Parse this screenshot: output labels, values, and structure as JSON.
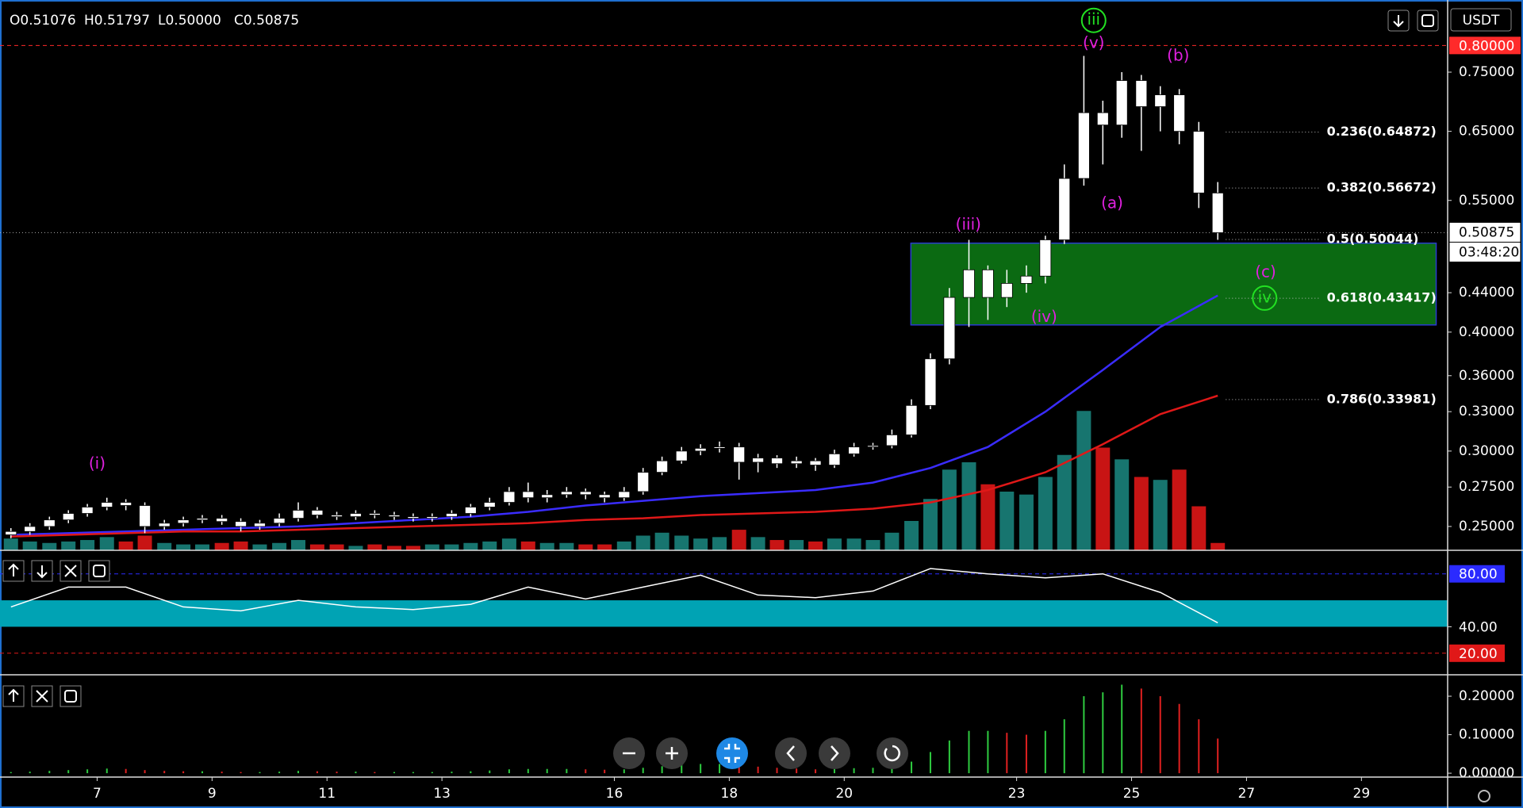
{
  "header": {
    "ohlc": [
      "O0.51076",
      "H0.51797",
      "L0.50000",
      "C0.50875"
    ],
    "quote": "USDT"
  },
  "chart_data": [
    {
      "type": "candlestick",
      "x": [
        5.5,
        5.83,
        6.17,
        6.5,
        6.83,
        7.17,
        7.5,
        7.83,
        8.17,
        8.5,
        8.83,
        9.17,
        9.5,
        9.83,
        10.17,
        10.5,
        10.83,
        11.17,
        11.5,
        11.83,
        12.17,
        12.5,
        12.83,
        13.17,
        13.5,
        13.83,
        14.17,
        14.5,
        14.83,
        15.17,
        15.5,
        15.83,
        16.17,
        16.5,
        16.83,
        17.17,
        17.5,
        17.83,
        18.17,
        18.5,
        18.83,
        19.17,
        19.5,
        19.83,
        20.17,
        20.5,
        20.83,
        21.17,
        21.5,
        21.83,
        22.17,
        22.5,
        22.83,
        23.17,
        23.5,
        23.83,
        24.17,
        24.5,
        24.83,
        25.17,
        25.5,
        25.83,
        26.17,
        26.5
      ],
      "open": [
        0.245,
        0.247,
        0.25,
        0.254,
        0.258,
        0.262,
        0.265,
        0.263,
        0.25,
        0.252,
        0.254,
        0.255,
        0.253,
        0.25,
        0.252,
        0.255,
        0.26,
        0.257,
        0.256,
        0.258,
        0.257,
        0.256,
        0.255,
        0.256,
        0.258,
        0.262,
        0.265,
        0.272,
        0.268,
        0.27,
        0.272,
        0.27,
        0.268,
        0.272,
        0.285,
        0.293,
        0.3,
        0.302,
        0.303,
        0.292,
        0.295,
        0.291,
        0.293,
        0.29,
        0.298,
        0.303,
        0.304,
        0.312,
        0.335,
        0.375,
        0.435,
        0.465,
        0.435,
        0.45,
        0.458,
        0.5,
        0.58,
        0.68,
        0.66,
        0.735,
        0.69,
        0.71,
        0.65,
        0.56
      ],
      "high": [
        0.249,
        0.252,
        0.256,
        0.26,
        0.264,
        0.268,
        0.267,
        0.265,
        0.254,
        0.256,
        0.257,
        0.257,
        0.255,
        0.254,
        0.258,
        0.265,
        0.262,
        0.259,
        0.26,
        0.26,
        0.259,
        0.258,
        0.258,
        0.26,
        0.264,
        0.268,
        0.275,
        0.278,
        0.273,
        0.275,
        0.274,
        0.272,
        0.275,
        0.288,
        0.296,
        0.303,
        0.305,
        0.307,
        0.306,
        0.298,
        0.297,
        0.296,
        0.295,
        0.301,
        0.306,
        0.306,
        0.316,
        0.34,
        0.38,
        0.445,
        0.5,
        0.47,
        0.465,
        0.47,
        0.505,
        0.6,
        0.78,
        0.7,
        0.75,
        0.745,
        0.725,
        0.72,
        0.665,
        0.575
      ],
      "low": [
        0.243,
        0.245,
        0.248,
        0.252,
        0.256,
        0.26,
        0.26,
        0.246,
        0.248,
        0.25,
        0.252,
        0.251,
        0.247,
        0.248,
        0.25,
        0.253,
        0.255,
        0.254,
        0.254,
        0.255,
        0.254,
        0.253,
        0.253,
        0.254,
        0.256,
        0.26,
        0.263,
        0.265,
        0.265,
        0.268,
        0.267,
        0.265,
        0.266,
        0.27,
        0.283,
        0.291,
        0.297,
        0.299,
        0.28,
        0.285,
        0.288,
        0.288,
        0.286,
        0.288,
        0.296,
        0.301,
        0.302,
        0.31,
        0.332,
        0.37,
        0.405,
        0.412,
        0.425,
        0.44,
        0.45,
        0.495,
        0.57,
        0.6,
        0.64,
        0.62,
        0.65,
        0.63,
        0.54,
        0.5
      ],
      "close": [
        0.247,
        0.25,
        0.254,
        0.258,
        0.262,
        0.265,
        0.263,
        0.25,
        0.252,
        0.254,
        0.255,
        0.253,
        0.25,
        0.252,
        0.255,
        0.26,
        0.257,
        0.256,
        0.258,
        0.257,
        0.256,
        0.255,
        0.256,
        0.258,
        0.262,
        0.265,
        0.272,
        0.268,
        0.27,
        0.272,
        0.27,
        0.268,
        0.272,
        0.285,
        0.293,
        0.3,
        0.302,
        0.303,
        0.292,
        0.295,
        0.291,
        0.293,
        0.29,
        0.298,
        0.303,
        0.304,
        0.312,
        0.335,
        0.375,
        0.435,
        0.465,
        0.435,
        0.45,
        0.458,
        0.5,
        0.58,
        0.68,
        0.66,
        0.735,
        0.69,
        0.71,
        0.65,
        0.56,
        0.50875
      ],
      "up_color": "#ffffff",
      "down_color": "#ffffff",
      "volume": {
        "values": [
          8,
          6,
          5,
          6,
          7,
          9,
          6,
          10,
          5,
          4,
          4,
          5,
          6,
          4,
          5,
          7,
          4,
          4,
          3,
          4,
          3,
          3,
          4,
          4,
          5,
          6,
          8,
          6,
          5,
          5,
          4,
          4,
          6,
          10,
          12,
          10,
          8,
          9,
          14,
          9,
          7,
          7,
          6,
          8,
          8,
          7,
          12,
          20,
          35,
          55,
          60,
          45,
          40,
          38,
          50,
          65,
          95,
          70,
          62,
          50,
          48,
          55,
          30,
          5
        ],
        "ylim": [
          0,
          100
        ],
        "up_color": "#17756f",
        "down_color": "#c81414"
      },
      "lines": [
        {
          "color": "#3a2cff",
          "x": [
            5.5,
            6.5,
            7.5,
            8.5,
            9.5,
            10.5,
            11.5,
            12.5,
            13.5,
            14.5,
            15.5,
            16.5,
            17.5,
            18.5,
            19.5,
            20.5,
            21.5,
            22.5,
            23.5,
            24.5,
            25.5,
            26.5
          ],
          "values": [
            0.245,
            0.246,
            0.247,
            0.248,
            0.249,
            0.25,
            0.252,
            0.254,
            0.256,
            0.259,
            0.263,
            0.266,
            0.269,
            0.271,
            0.273,
            0.278,
            0.288,
            0.303,
            0.33,
            0.365,
            0.405,
            0.437
          ]
        },
        {
          "color": "#e01818",
          "x": [
            5.5,
            6.5,
            7.5,
            8.5,
            9.5,
            10.5,
            11.5,
            12.5,
            13.5,
            14.5,
            15.5,
            16.5,
            17.5,
            18.5,
            19.5,
            20.5,
            21.5,
            22.5,
            23.5,
            24.5,
            25.5,
            26.5
          ],
          "values": [
            0.244,
            0.245,
            0.246,
            0.247,
            0.247,
            0.248,
            0.249,
            0.25,
            0.251,
            0.252,
            0.254,
            0.255,
            0.257,
            0.258,
            0.259,
            0.261,
            0.265,
            0.273,
            0.285,
            0.305,
            0.328,
            0.343
          ]
        }
      ],
      "xlim": [
        5.31,
        30.5
      ],
      "xticks": [
        7,
        9,
        11,
        13,
        16,
        18,
        20,
        23,
        25,
        27,
        29
      ],
      "ylim": [
        0.236,
        0.893
      ],
      "log_scale": true,
      "yticks": [
        {
          "value": 0.75,
          "label": "0.75000"
        },
        {
          "value": 0.65,
          "label": "0.65000"
        },
        {
          "value": 0.55,
          "label": "0.55000"
        },
        {
          "value": 0.44,
          "label": "0.44000"
        },
        {
          "value": 0.4,
          "label": "0.40000"
        },
        {
          "value": 0.36,
          "label": "0.36000"
        },
        {
          "value": 0.33,
          "label": "0.33000"
        },
        {
          "value": 0.3,
          "label": "0.30000"
        },
        {
          "value": 0.275,
          "label": "0.27500"
        },
        {
          "value": 0.25,
          "label": "0.25000"
        }
      ],
      "hline": {
        "value": 0.8,
        "label": "0.80000",
        "color": "#ff2a2a"
      },
      "last": {
        "value": 0.50875,
        "label": "0.50875",
        "countdown": "03:48:20"
      },
      "fib": [
        {
          "value": 0.64872,
          "label": "0.236(0.64872)"
        },
        {
          "value": 0.56672,
          "label": "0.382(0.56672)"
        },
        {
          "value": 0.50044,
          "label": "0.5(0.50044)"
        },
        {
          "value": 0.43417,
          "label": "0.618(0.43417)"
        },
        {
          "value": 0.33981,
          "label": "0.786(0.33981)"
        }
      ],
      "zone": {
        "x": [
          21.16,
          30.3
        ],
        "y": [
          0.407,
          0.496
        ],
        "color": "#0b6a12"
      },
      "annotations": [
        {
          "text": "(i)",
          "color": "#e020e0"
        },
        {
          "text": "(iii)",
          "color": "#e020e0"
        },
        {
          "text": "(iv)",
          "color": "#e020e0"
        },
        {
          "text": "(v)",
          "color": "#e020e0"
        },
        {
          "text": "(a)",
          "color": "#e020e0"
        },
        {
          "text": "(b)",
          "color": "#e020e0"
        },
        {
          "text": "(c)",
          "color": "#e020e0"
        },
        {
          "text": "iii",
          "color": "#22e022",
          "circled": true
        },
        {
          "text": "iv",
          "color": "#22e022",
          "circled": true
        }
      ]
    },
    {
      "type": "line",
      "x": [
        5.5,
        6.5,
        7.5,
        8.5,
        9.5,
        10.5,
        11.5,
        12.5,
        13.5,
        14.5,
        15.5,
        16.5,
        17.5,
        18.5,
        19.5,
        20.5,
        21.5,
        22.5,
        23.5,
        24.5,
        25.5,
        26.5
      ],
      "values": [
        55,
        70,
        70,
        55,
        52,
        60,
        55,
        53,
        57,
        70,
        61,
        70,
        79,
        64,
        62,
        67,
        84,
        80,
        77,
        80,
        66,
        43
      ],
      "color": "#ffffff",
      "ylim": [
        3.7,
        97.8
      ],
      "yticks": [
        {
          "value": 80,
          "label": "80.00",
          "color": "#2b2bff"
        },
        {
          "value": 40,
          "label": "40.00"
        },
        {
          "value": 20,
          "label": "20.00",
          "color": "#e01818"
        }
      ],
      "band": [
        40,
        60
      ],
      "band_color": "#00a3b4"
    },
    {
      "type": "bar",
      "values": [
        0.003,
        0.004,
        0.006,
        0.008,
        0.01,
        0.012,
        0.011,
        0.008,
        0.006,
        0.005,
        0.005,
        0.004,
        0.003,
        0.003,
        0.004,
        0.006,
        0.005,
        0.004,
        0.004,
        0.003,
        0.003,
        0.003,
        0.003,
        0.004,
        0.005,
        0.007,
        0.01,
        0.011,
        0.011,
        0.011,
        0.01,
        0.009,
        0.01,
        0.014,
        0.018,
        0.022,
        0.024,
        0.024,
        0.02,
        0.017,
        0.014,
        0.012,
        0.01,
        0.011,
        0.013,
        0.014,
        0.017,
        0.03,
        0.055,
        0.085,
        0.11,
        0.11,
        0.105,
        0.1,
        0.11,
        0.14,
        0.2,
        0.21,
        0.23,
        0.22,
        0.2,
        0.18,
        0.14,
        0.09
      ],
      "ylim": [
        -0.0101,
        0.2557
      ],
      "yticks": [
        {
          "value": 0.2,
          "label": "0.20000"
        },
        {
          "value": 0.1,
          "label": "0.10000"
        },
        {
          "value": 0,
          "label": "0.00000"
        }
      ],
      "up_color": "#2ecc40",
      "down_color": "#e02020"
    }
  ]
}
